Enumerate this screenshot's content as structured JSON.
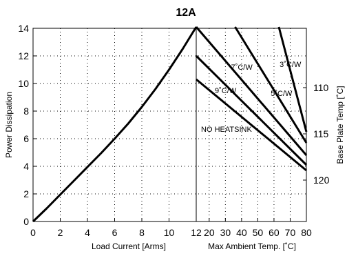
{
  "chart_data": {
    "type": "line",
    "title": "12A",
    "left_axis": {
      "label": "Power Dissipation",
      "ylim": [
        0,
        14
      ],
      "ticks": [
        0,
        2,
        4,
        6,
        8,
        10,
        12,
        14
      ]
    },
    "right_axis": {
      "label": "Base Plate Temp [˚C]",
      "ticks": [
        {
          "label": "110",
          "power": 9.7
        },
        {
          "label": "115",
          "power": 6.35
        },
        {
          "label": "120",
          "power": 3.0
        }
      ]
    },
    "load_axis": {
      "label": "Load Current  [Arms]",
      "xlim": [
        0,
        12
      ],
      "ticks": [
        0,
        2,
        4,
        6,
        8,
        10,
        12
      ]
    },
    "ambient_axis": {
      "label": "Max Ambient Temp. [˚C]",
      "xlim": [
        12,
        80
      ],
      "ticks": [
        12,
        20,
        30,
        40,
        50,
        60,
        70,
        80
      ],
      "tick_labels": [
        "",
        "20",
        "30",
        "40",
        "50",
        "60",
        "70",
        "80"
      ]
    },
    "dissipation_curve": {
      "x": [
        0,
        1,
        2,
        3,
        4,
        5,
        6,
        7,
        8,
        9,
        10,
        11,
        12
      ],
      "y": [
        0,
        0.95,
        1.95,
        2.95,
        3.95,
        4.95,
        6.0,
        7.1,
        8.3,
        9.6,
        11.0,
        12.5,
        14.1
      ]
    },
    "derating_lines": [
      {
        "name": "3˚C/W",
        "label_at": [
          63.5,
          11.2
        ],
        "points": [
          [
            63,
            14.1
          ],
          [
            80,
            6.5
          ]
        ]
      },
      {
        "name": "5˚C/W",
        "label_at": [
          58,
          9.1
        ],
        "points": [
          [
            36,
            14.1
          ],
          [
            80,
            5.7
          ]
        ]
      },
      {
        "name": "7˚C/W",
        "label_at": [
          33.5,
          11.0
        ],
        "points": [
          [
            12,
            14.1
          ],
          [
            80,
            4.8
          ]
        ]
      },
      {
        "name": "9˚C/W",
        "label_at": [
          23.5,
          9.3
        ],
        "points": [
          [
            12,
            12.0
          ],
          [
            80,
            4.1
          ]
        ]
      },
      {
        "name": "NO HEATSINK",
        "label_at": [
          15,
          6.5
        ],
        "points": [
          [
            12,
            10.3
          ],
          [
            80,
            3.7
          ]
        ]
      }
    ],
    "grid": true
  }
}
